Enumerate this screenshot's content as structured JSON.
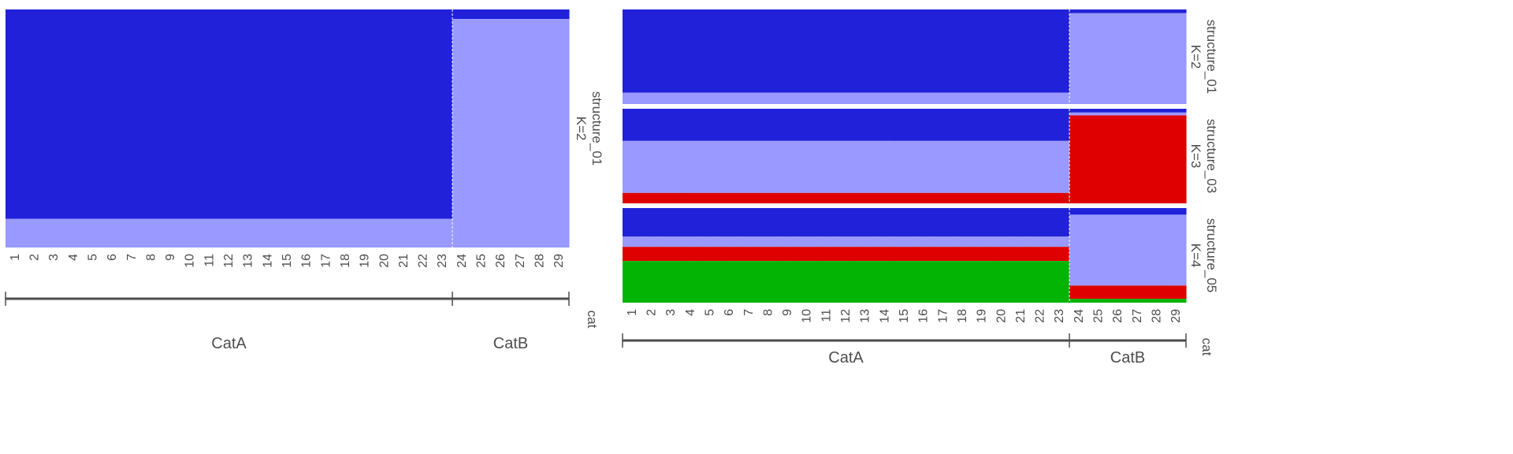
{
  "colors": {
    "cluster1": "#2121D9",
    "cluster2": "#9999FF",
    "cluster3": "#DF0101",
    "cluster4": "#04B404",
    "axis": "#4d4d4d",
    "separator": "#ffffff"
  },
  "chart_data": [
    {
      "type": "bar",
      "stacked": true,
      "normalized": true,
      "categories": [
        "1",
        "2",
        "3",
        "4",
        "5",
        "6",
        "7",
        "8",
        "9",
        "10",
        "11",
        "12",
        "13",
        "14",
        "15",
        "16",
        "17",
        "18",
        "19",
        "20",
        "21",
        "22",
        "23",
        "24",
        "25",
        "26",
        "27",
        "28",
        "29"
      ],
      "groups": [
        {
          "label": "CatA",
          "start": 1,
          "end": 23
        },
        {
          "label": "CatB",
          "start": 24,
          "end": 29
        }
      ],
      "group_axis_label": "cat",
      "panels": [
        {
          "strip_line1": "structure_01",
          "strip_line2": "K=2",
          "series": [
            {
              "color": "cluster1",
              "values": [
                0.88,
                0.88,
                0.88,
                0.88,
                0.88,
                0.88,
                0.88,
                0.88,
                0.88,
                0.88,
                0.88,
                0.88,
                0.88,
                0.88,
                0.88,
                0.88,
                0.88,
                0.88,
                0.88,
                0.88,
                0.88,
                0.88,
                0.88,
                0.04,
                0.04,
                0.04,
                0.04,
                0.04,
                0.04
              ]
            },
            {
              "color": "cluster2",
              "values": [
                0.12,
                0.12,
                0.12,
                0.12,
                0.12,
                0.12,
                0.12,
                0.12,
                0.12,
                0.12,
                0.12,
                0.12,
                0.12,
                0.12,
                0.12,
                0.12,
                0.12,
                0.12,
                0.12,
                0.12,
                0.12,
                0.12,
                0.12,
                0.96,
                0.96,
                0.96,
                0.96,
                0.96,
                0.96
              ]
            }
          ]
        }
      ]
    },
    {
      "type": "bar",
      "stacked": true,
      "normalized": true,
      "categories": [
        "1",
        "2",
        "3",
        "4",
        "5",
        "6",
        "7",
        "8",
        "9",
        "10",
        "11",
        "12",
        "13",
        "14",
        "15",
        "16",
        "17",
        "18",
        "19",
        "20",
        "21",
        "22",
        "23",
        "24",
        "25",
        "26",
        "27",
        "28",
        "29"
      ],
      "groups": [
        {
          "label": "CatA",
          "start": 1,
          "end": 23
        },
        {
          "label": "CatB",
          "start": 24,
          "end": 29
        }
      ],
      "group_axis_label": "cat",
      "panels": [
        {
          "strip_line1": "structure_01",
          "strip_line2": "K=2",
          "series": [
            {
              "color": "cluster1",
              "values": [
                0.88,
                0.88,
                0.88,
                0.88,
                0.88,
                0.88,
                0.88,
                0.88,
                0.88,
                0.88,
                0.88,
                0.88,
                0.88,
                0.88,
                0.88,
                0.88,
                0.88,
                0.88,
                0.88,
                0.88,
                0.88,
                0.88,
                0.88,
                0.04,
                0.04,
                0.04,
                0.04,
                0.04,
                0.04
              ]
            },
            {
              "color": "cluster2",
              "values": [
                0.12,
                0.12,
                0.12,
                0.12,
                0.12,
                0.12,
                0.12,
                0.12,
                0.12,
                0.12,
                0.12,
                0.12,
                0.12,
                0.12,
                0.12,
                0.12,
                0.12,
                0.12,
                0.12,
                0.12,
                0.12,
                0.12,
                0.12,
                0.96,
                0.96,
                0.96,
                0.96,
                0.96,
                0.96
              ]
            }
          ]
        },
        {
          "strip_line1": "structure_03",
          "strip_line2": "K=3",
          "series": [
            {
              "color": "cluster1",
              "values": [
                0.34,
                0.34,
                0.34,
                0.34,
                0.34,
                0.34,
                0.34,
                0.34,
                0.34,
                0.34,
                0.34,
                0.34,
                0.34,
                0.34,
                0.34,
                0.34,
                0.34,
                0.34,
                0.34,
                0.34,
                0.34,
                0.34,
                0.34,
                0.04,
                0.04,
                0.04,
                0.04,
                0.04,
                0.04
              ]
            },
            {
              "color": "cluster2",
              "values": [
                0.55,
                0.55,
                0.55,
                0.55,
                0.55,
                0.55,
                0.55,
                0.55,
                0.55,
                0.55,
                0.55,
                0.55,
                0.55,
                0.55,
                0.55,
                0.55,
                0.55,
                0.55,
                0.55,
                0.55,
                0.55,
                0.55,
                0.55,
                0.03,
                0.03,
                0.03,
                0.03,
                0.03,
                0.03
              ]
            },
            {
              "color": "cluster3",
              "values": [
                0.11,
                0.11,
                0.11,
                0.11,
                0.11,
                0.11,
                0.11,
                0.11,
                0.11,
                0.11,
                0.11,
                0.11,
                0.11,
                0.11,
                0.11,
                0.11,
                0.11,
                0.11,
                0.11,
                0.11,
                0.11,
                0.11,
                0.11,
                0.93,
                0.93,
                0.93,
                0.93,
                0.93,
                0.93
              ]
            }
          ]
        },
        {
          "strip_line1": "structure_05",
          "strip_line2": "K=4",
          "series": [
            {
              "color": "cluster1",
              "values": [
                0.3,
                0.3,
                0.3,
                0.3,
                0.3,
                0.3,
                0.3,
                0.3,
                0.3,
                0.3,
                0.3,
                0.3,
                0.3,
                0.3,
                0.3,
                0.3,
                0.3,
                0.3,
                0.3,
                0.3,
                0.3,
                0.3,
                0.3,
                0.07,
                0.07,
                0.07,
                0.07,
                0.07,
                0.07
              ]
            },
            {
              "color": "cluster2",
              "values": [
                0.11,
                0.11,
                0.11,
                0.11,
                0.11,
                0.11,
                0.11,
                0.11,
                0.11,
                0.11,
                0.11,
                0.11,
                0.11,
                0.11,
                0.11,
                0.11,
                0.11,
                0.11,
                0.11,
                0.11,
                0.11,
                0.11,
                0.11,
                0.75,
                0.75,
                0.75,
                0.75,
                0.75,
                0.75
              ]
            },
            {
              "color": "cluster3",
              "values": [
                0.15,
                0.15,
                0.15,
                0.15,
                0.15,
                0.15,
                0.15,
                0.15,
                0.15,
                0.15,
                0.15,
                0.15,
                0.15,
                0.15,
                0.15,
                0.15,
                0.15,
                0.15,
                0.15,
                0.15,
                0.15,
                0.15,
                0.15,
                0.14,
                0.14,
                0.14,
                0.14,
                0.14,
                0.14
              ]
            },
            {
              "color": "cluster4",
              "values": [
                0.44,
                0.44,
                0.44,
                0.44,
                0.44,
                0.44,
                0.44,
                0.44,
                0.44,
                0.44,
                0.44,
                0.44,
                0.44,
                0.44,
                0.44,
                0.44,
                0.44,
                0.44,
                0.44,
                0.44,
                0.44,
                0.44,
                0.44,
                0.04,
                0.04,
                0.04,
                0.04,
                0.04,
                0.04
              ]
            }
          ]
        }
      ]
    }
  ]
}
